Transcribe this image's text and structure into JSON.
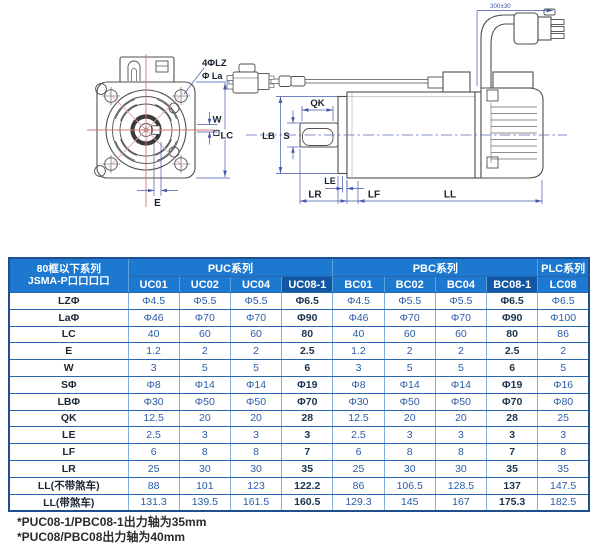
{
  "drawing": {
    "labels": {
      "bolt_holes": "4ΦLZ",
      "pilot": "Φ La",
      "key_width": "W",
      "flange": "LC",
      "offset": "E",
      "key_length": "QK",
      "shaft_dia": "S",
      "pilot_dia": "LB",
      "le": "LE",
      "shaft_len": "LR",
      "lf": "LF",
      "body_len": "LL",
      "cable_len": "300±30"
    }
  },
  "table": {
    "corner_header_line1": "80框以下系列",
    "corner_header_line2": "JSMA-P口口口口",
    "groups": [
      {
        "label": "PUC系列",
        "span": 4
      },
      {
        "label": "PBC系列",
        "span": 4
      },
      {
        "label": "PLC系列",
        "span": 1
      }
    ],
    "columns": [
      "UC01",
      "UC02",
      "UC04",
      "UC08-1",
      "BC01",
      "BC02",
      "BC04",
      "BC08-1",
      "LC08"
    ],
    "highlighted_columns": [
      "UC08-1",
      "BC08-1"
    ],
    "rows": [
      {
        "label": "LZΦ",
        "values": [
          "Φ4.5",
          "Φ5.5",
          "Φ5.5",
          "Φ6.5",
          "Φ4.5",
          "Φ5.5",
          "Φ5.5",
          "Φ6.5",
          "Φ6.5"
        ]
      },
      {
        "label": "LaΦ",
        "values": [
          "Φ46",
          "Φ70",
          "Φ70",
          "Φ90",
          "Φ46",
          "Φ70",
          "Φ70",
          "Φ90",
          "Φ100"
        ]
      },
      {
        "label": "LC",
        "values": [
          "40",
          "60",
          "60",
          "80",
          "40",
          "60",
          "60",
          "80",
          "86"
        ]
      },
      {
        "label": "E",
        "values": [
          "1.2",
          "2",
          "2",
          "2.5",
          "1.2",
          "2",
          "2",
          "2.5",
          "2"
        ]
      },
      {
        "label": "W",
        "values": [
          "3",
          "5",
          "5",
          "6",
          "3",
          "5",
          "5",
          "6",
          "5"
        ]
      },
      {
        "label": "SΦ",
        "values": [
          "Φ8",
          "Φ14",
          "Φ14",
          "Φ19",
          "Φ8",
          "Φ14",
          "Φ14",
          "Φ19",
          "Φ16"
        ]
      },
      {
        "label": "LBΦ",
        "values": [
          "Φ30",
          "Φ50",
          "Φ50",
          "Φ70",
          "Φ30",
          "Φ50",
          "Φ50",
          "Φ70",
          "Φ80"
        ]
      },
      {
        "label": "QK",
        "values": [
          "12.5",
          "20",
          "20",
          "28",
          "12.5",
          "20",
          "20",
          "28",
          "25"
        ]
      },
      {
        "label": "LE",
        "values": [
          "2.5",
          "3",
          "3",
          "3",
          "2.5",
          "3",
          "3",
          "3",
          "3"
        ]
      },
      {
        "label": "LF",
        "values": [
          "6",
          "8",
          "8",
          "7",
          "6",
          "8",
          "8",
          "7",
          "8"
        ]
      },
      {
        "label": "LR",
        "values": [
          "25",
          "30",
          "30",
          "35",
          "25",
          "30",
          "30",
          "35",
          "35"
        ]
      },
      {
        "label": "LL(不带煞车)",
        "values": [
          "88",
          "101",
          "123",
          "122.2",
          "86",
          "106.5",
          "128.5",
          "137",
          "147.5"
        ]
      },
      {
        "label": "LL(带煞车)",
        "values": [
          "131.3",
          "139.5",
          "161.5",
          "160.5",
          "129.3",
          "145",
          "167",
          "175.3",
          "182.5"
        ]
      }
    ]
  },
  "footnotes": [
    "*PUC08-1/PBC08-1出力轴为35mm",
    "*PUC08/PBC08出力轴为40mm"
  ],
  "colors": {
    "header_bg": "#1d79cf",
    "header_highlight_bg": "#1257a4",
    "grid_h": "#2a66ab",
    "grid_v": "#7fb0dc",
    "outer_border": "#1f4f8f",
    "value_text": "#2b5ca8",
    "dim_blue": "#4458aa",
    "centerline_red": "#d87575",
    "outline": "#4f4f4f"
  }
}
